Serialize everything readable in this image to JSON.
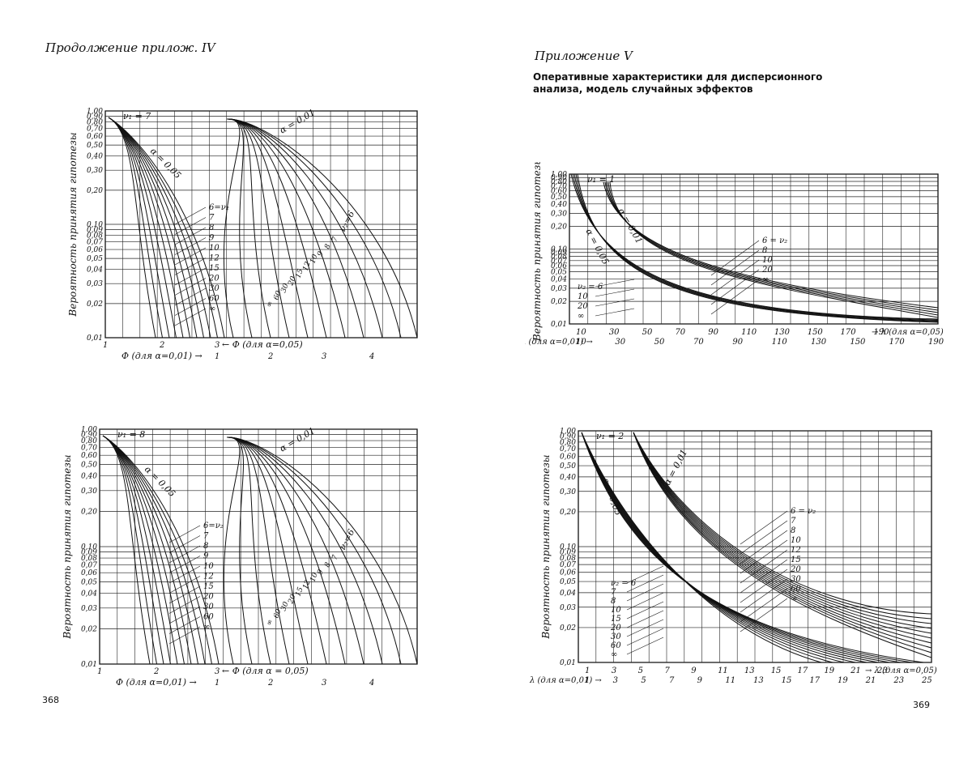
{
  "page": {
    "left_header": "Продолжение прилож. IV",
    "right_header": "Приложение V",
    "right_title_line1": "Оперативные характеристики для дисперсионного",
    "right_title_line2": "анализа, модель случайных эффектов",
    "page_left": "368",
    "page_right": "369"
  },
  "chart_data": [
    {
      "id": "c1",
      "type": "line",
      "ylabel": "Вероятность принятия гипотезы",
      "y_ticks": [
        "1,00",
        "0,90",
        "0,80",
        "0,70",
        "0,60",
        "0,50",
        "0,40",
        "0,30",
        "0,20",
        "0,10",
        "0,09",
        "0,08",
        "0,07",
        "0,06",
        "0,05",
        "0,04",
        "0,03",
        "0,02",
        "0,01"
      ],
      "x_ticks_top": [
        "1",
        "2",
        "3"
      ],
      "x_ticks_bottom": [
        "1",
        "2",
        "3",
        "4"
      ],
      "xlabel_a01": "Φ (для α=0,01) →",
      "xlabel_a05": "← Φ (для α=0,05)",
      "nu1_label": "ν₁ = 7",
      "alpha05_label": "α = 0,05",
      "alpha01_label": "α = 0,01",
      "nu2_right_label": "ν₂=6",
      "legend_left": [
        "6=ν₂",
        "7",
        "8",
        "9",
        "10",
        "12",
        "15",
        "20",
        "30",
        "60",
        "∞"
      ],
      "labels_mid": [
        "7",
        "8",
        "9",
        "10",
        "12",
        "15",
        "20",
        "30",
        "60",
        "∞"
      ]
    },
    {
      "id": "c2",
      "type": "line",
      "ylabel": "Вероятность принятия гипотезы",
      "y_ticks": [
        "1,00",
        "0,90",
        "0,80",
        "0,70",
        "0,60",
        "0,50",
        "0,40",
        "0,30",
        "0,20",
        "0,10",
        "0,09",
        "0,08",
        "0,07",
        "0,06",
        "0,05",
        "0,04",
        "0,03",
        "0,02",
        "0,01"
      ],
      "x_ticks_top": [
        "10",
        "30",
        "50",
        "70",
        "90",
        "110",
        "130",
        "150",
        "170",
        "190"
      ],
      "x_ticks_bottom": [
        "10",
        "30",
        "50",
        "70",
        "90",
        "110",
        "130",
        "150",
        "170",
        "190"
      ],
      "xlabel_a05": "→ λ (для α=0,05)",
      "xlabel_a01": "λ (для α=0,01) →",
      "nu1_label": "ν₁ = 1",
      "alpha05_label": "α = 0,05",
      "alpha01_label": "α = 0,01",
      "legend_right": [
        "6 = ν₂",
        "8",
        "10",
        "20",
        "∞"
      ],
      "legend_left": [
        "ν₂ = 6",
        "10",
        "20",
        "∞"
      ]
    },
    {
      "id": "c3",
      "type": "line",
      "ylabel": "Вероятность принятия гипотезы",
      "y_ticks": [
        "1,00",
        "0,90",
        "0,80",
        "0,70",
        "0,60",
        "0,50",
        "0,40",
        "0,30",
        "0,20",
        "0,10",
        "0,09",
        "0,08",
        "0,07",
        "0,06",
        "0,05",
        "0,04",
        "0,03",
        "0,02",
        "0,01"
      ],
      "x_ticks_top": [
        "1",
        "2",
        "3"
      ],
      "x_ticks_bottom": [
        "1",
        "2",
        "3",
        "4"
      ],
      "xlabel_a01": "Φ (для α=0,01) →",
      "xlabel_a05": "← Φ (для α = 0,05)",
      "nu1_label": "ν₁ = 8",
      "alpha05_label": "α = 0,05",
      "alpha01_label": "α = 0,01",
      "nu2_right_label": "ν₂=6",
      "legend_left": [
        "6=ν₂",
        "7",
        "8",
        "9",
        "10",
        "12",
        "15",
        "20",
        "30",
        "60",
        "∞"
      ],
      "labels_mid": [
        "7",
        "8",
        "9",
        "10",
        "12",
        "15",
        "20",
        "30",
        "60",
        "∞"
      ]
    },
    {
      "id": "c4",
      "type": "line",
      "ylabel": "Вероятность принятия гипотезы",
      "y_ticks": [
        "1,00",
        "0,90",
        "0,80",
        "0,70",
        "0,60",
        "0,50",
        "0,40",
        "0,30",
        "0,20",
        "0,10",
        "0,09",
        "0,08",
        "0,07",
        "0,06",
        "0,05",
        "0,04",
        "0,03",
        "0,02",
        "0,01"
      ],
      "x_ticks_top": [
        "1",
        "3",
        "5",
        "7",
        "9",
        "11",
        "13",
        "15",
        "17",
        "19",
        "21",
        "23"
      ],
      "x_ticks_bottom": [
        "1",
        "3",
        "5",
        "7",
        "9",
        "11",
        "13",
        "15",
        "17",
        "19",
        "21",
        "23",
        "25"
      ],
      "xlabel_a05": "→ λ (для α=0,05)",
      "xlabel_a01": "λ (для α=0,01) →",
      "nu1_label": "ν₁ = 2",
      "alpha05_label": "α = 0,05",
      "alpha01_label": "α = 0,01",
      "legend_right": [
        "6 = ν₂",
        "7",
        "8",
        "10",
        "12",
        "15",
        "20",
        "30",
        "60",
        "∞"
      ],
      "legend_left": [
        "ν₂ = 6",
        "7",
        "8",
        "10",
        "15",
        "20",
        "30",
        "60",
        "∞"
      ]
    }
  ]
}
